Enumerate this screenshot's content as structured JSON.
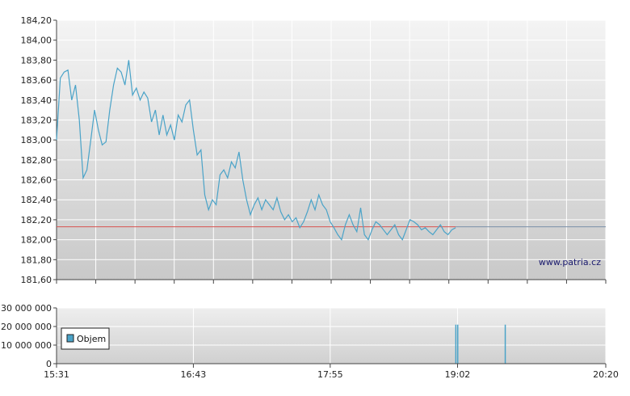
{
  "watermark": "www.patria.cz",
  "colors": {
    "price_line": "#4aa3c8",
    "reference_line": "#d9534f",
    "volume_bar": "#4aa3c8",
    "grid": "#ffffff",
    "flat_line": "#7a8fa8"
  },
  "chart_data": [
    {
      "type": "line",
      "name": "price",
      "ylim": [
        181.6,
        184.2
      ],
      "y_ticks": [
        "184,20",
        "184,00",
        "183,80",
        "183,60",
        "183,40",
        "183,20",
        "183,00",
        "182,80",
        "182,60",
        "182,40",
        "182,20",
        "182,00",
        "181,80",
        "181,60"
      ],
      "x_range": [
        "15:31",
        "20:20"
      ],
      "reference_value": 182.13,
      "grid": true,
      "x": [
        "15:31",
        "15:33",
        "15:35",
        "15:37",
        "15:39",
        "15:41",
        "15:43",
        "15:45",
        "15:47",
        "15:49",
        "15:51",
        "15:53",
        "15:55",
        "15:57",
        "15:59",
        "16:01",
        "16:03",
        "16:05",
        "16:07",
        "16:09",
        "16:11",
        "16:13",
        "16:15",
        "16:17",
        "16:19",
        "16:21",
        "16:23",
        "16:25",
        "16:27",
        "16:29",
        "16:31",
        "16:33",
        "16:35",
        "16:37",
        "16:39",
        "16:41",
        "16:43",
        "16:45",
        "16:47",
        "16:49",
        "16:51",
        "16:53",
        "16:55",
        "16:57",
        "16:59",
        "17:01",
        "17:03",
        "17:05",
        "17:07",
        "17:09",
        "17:11",
        "17:13",
        "17:15",
        "17:17",
        "17:19",
        "17:21",
        "17:23",
        "17:25",
        "17:27",
        "17:29",
        "17:31",
        "17:33",
        "17:35",
        "17:37",
        "17:39",
        "17:41",
        "17:43",
        "17:45",
        "17:47",
        "17:49",
        "17:51",
        "17:53",
        "17:55",
        "17:57",
        "17:59",
        "18:01",
        "18:03",
        "18:05",
        "18:07",
        "18:09",
        "18:11",
        "18:13",
        "18:15",
        "18:17",
        "18:19",
        "18:21",
        "18:23",
        "18:25",
        "18:27",
        "18:29",
        "18:31",
        "18:33",
        "18:35",
        "18:37",
        "18:39",
        "18:41",
        "18:43",
        "18:45",
        "18:47",
        "18:49",
        "18:51",
        "18:53",
        "18:55",
        "18:57",
        "18:59",
        "19:01"
      ],
      "values": [
        183.0,
        183.62,
        183.68,
        183.7,
        183.4,
        183.55,
        183.2,
        182.62,
        182.7,
        183.0,
        183.3,
        183.1,
        182.95,
        182.98,
        183.3,
        183.55,
        183.72,
        183.68,
        183.55,
        183.8,
        183.45,
        183.52,
        183.4,
        183.48,
        183.42,
        183.18,
        183.3,
        183.05,
        183.25,
        183.05,
        183.15,
        183.0,
        183.25,
        183.18,
        183.35,
        183.4,
        183.1,
        182.85,
        182.9,
        182.45,
        182.3,
        182.4,
        182.35,
        182.65,
        182.7,
        182.62,
        182.78,
        182.72,
        182.88,
        182.6,
        182.4,
        182.25,
        182.35,
        182.42,
        182.3,
        182.4,
        182.35,
        182.3,
        182.42,
        182.28,
        182.2,
        182.25,
        182.18,
        182.22,
        182.12,
        182.18,
        182.28,
        182.4,
        182.3,
        182.45,
        182.35,
        182.3,
        182.18,
        182.12,
        182.05,
        182.0,
        182.15,
        182.25,
        182.15,
        182.08,
        182.32,
        182.05,
        182.0,
        182.1,
        182.18,
        182.15,
        182.1,
        182.05,
        182.1,
        182.15,
        182.05,
        182.0,
        182.1,
        182.2,
        182.18,
        182.15,
        182.1,
        182.12,
        182.08,
        182.05,
        182.1,
        182.15,
        182.08,
        182.05,
        182.1,
        182.12
      ]
    },
    {
      "type": "bar",
      "name": "Objem",
      "ylim": [
        0,
        30000000
      ],
      "y_ticks": [
        "30 000 000",
        "20 000 000",
        "10 000 000",
        "0"
      ],
      "x_ticks": [
        "15:31",
        "16:43",
        "17:55",
        "19:02",
        "20:20"
      ],
      "legend": "Objem",
      "legend_position": "left",
      "grid": true,
      "x": [
        "19:01",
        "19:02",
        "19:27"
      ],
      "values": [
        21000000,
        21000000,
        21000000
      ]
    }
  ]
}
